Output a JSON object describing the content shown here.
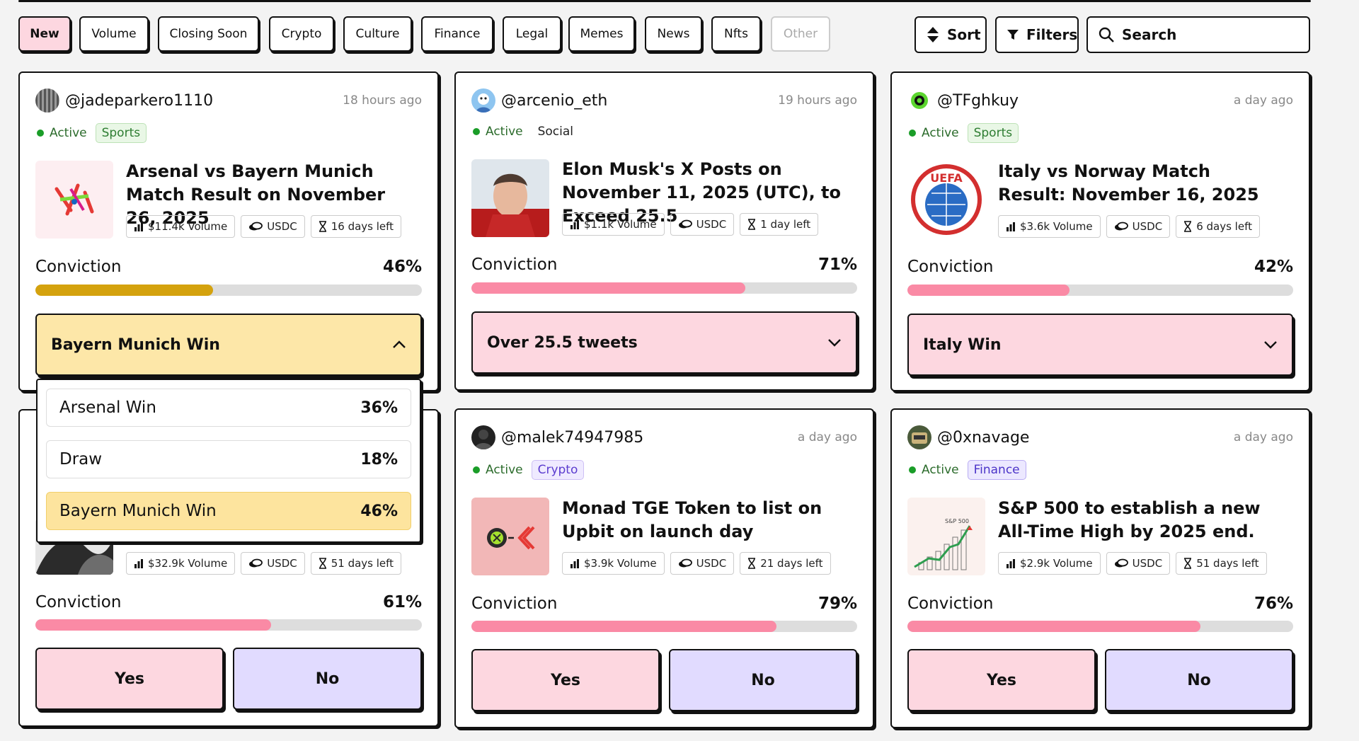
{
  "filters": {
    "chips": [
      "New",
      "Volume",
      "Closing Soon",
      "Crypto",
      "Culture",
      "Finance",
      "Legal",
      "Memes",
      "News",
      "Nfts",
      "Other"
    ],
    "sort_label": "Sort",
    "filters_label": "Filters",
    "search_label": "Search"
  },
  "colors": {
    "accent_pink": "#fa8aa5",
    "gold": "#d4a20e",
    "active_green": "#1a9d28",
    "no_purple": "#e1dbff",
    "yes_pink": "#fdd7e0"
  },
  "cards": [
    {
      "handle": "@jadeparkero1110",
      "time": "18 hours ago",
      "status": "Active",
      "category": "Sports",
      "title": "Arsenal vs Bayern Munich Match Result on November 26, 2025",
      "volume": "$11.4k Volume",
      "currency": "USDC",
      "days_left": "16 days left",
      "conviction_label": "Conviction",
      "conviction_pct": "46%",
      "conviction_value": 46,
      "selected": "Bayern Munich Win"
    },
    {
      "handle": "@arcenio_eth",
      "time": "19 hours ago",
      "status": "Active",
      "category": "Social",
      "title": "Elon Musk's X Posts on November 11, 2025 (UTC), to Exceed 25.5",
      "volume": "$1.1k Volume",
      "currency": "USDC",
      "days_left": "1 day left",
      "conviction_label": "Conviction",
      "conviction_pct": "71%",
      "conviction_value": 71,
      "selected": "Over 25.5 tweets"
    },
    {
      "handle": "@TFghkuy",
      "time": "a day ago",
      "status": "Active",
      "category": "Sports",
      "title": "Italy vs Norway Match Result: November 16, 2025",
      "volume": "$3.6k Volume",
      "currency": "USDC",
      "days_left": "6 days left",
      "conviction_label": "Conviction",
      "conviction_pct": "42%",
      "conviction_value": 42,
      "selected": "Italy Win"
    },
    {
      "volume": "$32.9k Volume",
      "currency": "USDC",
      "days_left": "51 days left",
      "conviction_label": "Conviction",
      "conviction_pct": "61%",
      "conviction_value": 61,
      "yes": "Yes",
      "no": "No"
    },
    {
      "handle": "@malek74947985",
      "time": "a day ago",
      "status": "Active",
      "category": "Crypto",
      "title": "Monad TGE Token to list on Upbit on launch day",
      "volume": "$3.9k Volume",
      "currency": "USDC",
      "days_left": "21 days left",
      "conviction_label": "Conviction",
      "conviction_pct": "79%",
      "conviction_value": 79,
      "yes": "Yes",
      "no": "No"
    },
    {
      "handle": "@0xnavage",
      "time": "a day ago",
      "status": "Active",
      "category": "Finance",
      "title": "S&P 500 to establish a new All-Time High by 2025 end.",
      "volume": "$2.9k Volume",
      "currency": "USDC",
      "days_left": "51 days left",
      "conviction_label": "Conviction",
      "conviction_pct": "76%",
      "conviction_value": 76,
      "yes": "Yes",
      "no": "No"
    }
  ],
  "dropdown": {
    "options": [
      {
        "label": "Arsenal Win",
        "pct": "36%"
      },
      {
        "label": "Draw",
        "pct": "18%"
      },
      {
        "label": "Bayern Munich Win",
        "pct": "46%"
      }
    ]
  },
  "thumb_texts": {
    "uefa": "UEFA",
    "sp": "S&P 500"
  }
}
